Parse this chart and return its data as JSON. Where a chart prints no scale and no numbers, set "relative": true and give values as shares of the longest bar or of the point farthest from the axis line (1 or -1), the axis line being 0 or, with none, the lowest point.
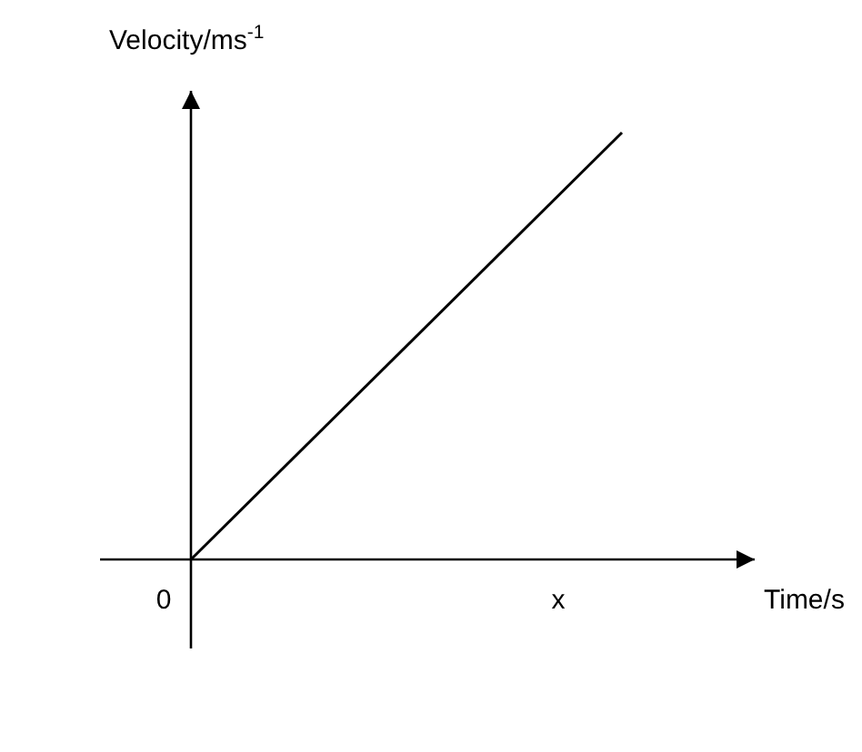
{
  "chart_data": {
    "type": "line",
    "relative": true,
    "xlabel": "Time/s",
    "ylabel": "Velocity/ms$^{-1}$",
    "categories": [
      null,
      null
    ],
    "annotations": [
      "0",
      "x"
    ],
    "series": [
      {
        "color": "#000000",
        "values": [
          0,
          1
        ]
      }
    ],
    "marker": "none",
    "line_style": "solid"
  }
}
